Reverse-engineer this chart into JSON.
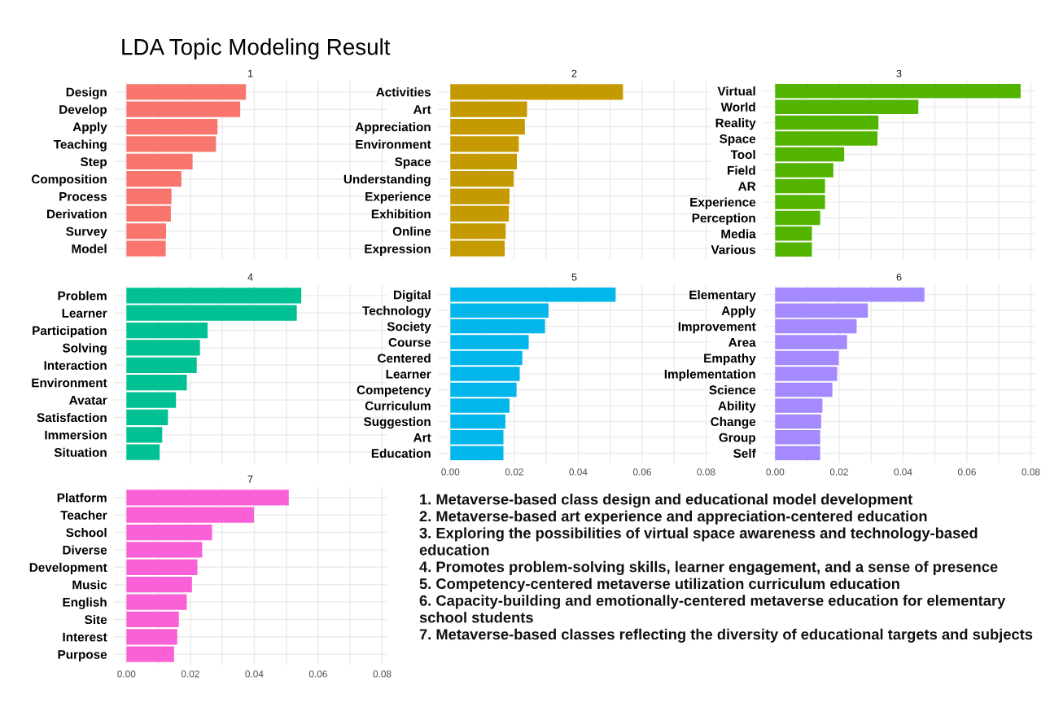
{
  "chart_data": [
    {
      "type": "other",
      "title": "LDA Topic Modeling Result",
      "annotations": [
        "1. Metaverse-based class design and educational model development",
        "2. Metaverse-based art experience and appreciation-centered education",
        "3. Exploring the possibilities of virtual space awareness and technology-based education",
        "4. Promotes problem-solving skills, learner engagement, and a sense of presence",
        "5. Competency-centered metaverse utilization curriculum education",
        "6. Capacity-building and emotionally-centered metaverse education for elementary school students",
        "7. Metaverse-based classes reflecting the diversity of educational targets and subjects"
      ]
    },
    {
      "type": "bar",
      "orientation": "horizontal",
      "title": "1",
      "color": "#f8766d",
      "grid": true,
      "tick_labels": "y",
      "xlim": [
        -0.0039,
        0.0814
      ],
      "xticks": [
        0,
        0.01,
        0.02,
        0.03,
        0.04,
        0.05,
        0.06,
        0.07,
        0.08
      ],
      "categories": [
        "Design",
        "Develop",
        "Apply",
        "Teaching",
        "Step",
        "Composition",
        "Process",
        "Derivation",
        "Survey",
        "Model"
      ],
      "values": [
        0.0374,
        0.0356,
        0.0285,
        0.028,
        0.0207,
        0.0172,
        0.0141,
        0.0139,
        0.0124,
        0.0123
      ]
    },
    {
      "type": "bar",
      "orientation": "horizontal",
      "title": "2",
      "color": "#c49a00",
      "grid": true,
      "tick_labels": "y",
      "xlim": [
        -0.0039,
        0.0814
      ],
      "xticks": [
        0,
        0.01,
        0.02,
        0.03,
        0.04,
        0.05,
        0.06,
        0.07,
        0.08
      ],
      "categories": [
        "Activities",
        "Art",
        "Appreciation",
        "Environment",
        "Space",
        "Understanding",
        "Experience",
        "Exhibition",
        "Online",
        "Expression"
      ],
      "values": [
        0.054,
        0.024,
        0.0233,
        0.0214,
        0.0208,
        0.0198,
        0.0185,
        0.0183,
        0.0173,
        0.017
      ]
    },
    {
      "type": "bar",
      "orientation": "horizontal",
      "title": "3",
      "color": "#53b400",
      "grid": true,
      "tick_labels": "y",
      "xlim": [
        -0.0039,
        0.0814
      ],
      "xticks": [
        0,
        0.01,
        0.02,
        0.03,
        0.04,
        0.05,
        0.06,
        0.07,
        0.08
      ],
      "categories": [
        "Virtual",
        "World",
        "Reality",
        "Space",
        "Tool",
        "Field",
        "AR",
        "Experience",
        "Perception",
        "Media",
        "Various"
      ],
      "values": [
        0.0768,
        0.0448,
        0.0323,
        0.032,
        0.0216,
        0.0182,
        0.0156,
        0.0156,
        0.0141,
        0.0115,
        0.0115
      ]
    },
    {
      "type": "bar",
      "orientation": "horizontal",
      "title": "4",
      "color": "#00c094",
      "grid": true,
      "tick_labels": "y",
      "xlim": [
        -0.0039,
        0.0814
      ],
      "xticks": [
        0,
        0.01,
        0.02,
        0.03,
        0.04,
        0.05,
        0.06,
        0.07,
        0.08
      ],
      "categories": [
        "Problem",
        "Learner",
        "Participation",
        "Solving",
        "Interaction",
        "Environment",
        "Avatar",
        "Satisfaction",
        "Immersion",
        "Situation"
      ],
      "values": [
        0.0547,
        0.0533,
        0.0254,
        0.023,
        0.022,
        0.0189,
        0.0155,
        0.013,
        0.0112,
        0.0104
      ]
    },
    {
      "type": "bar",
      "orientation": "horizontal",
      "title": "5",
      "color": "#00b6eb",
      "grid": true,
      "xlim": [
        -0.0039,
        0.0814
      ],
      "xticks": [
        {
          "value": 0,
          "label": "0.00"
        },
        {
          "value": 0.01,
          "label": null
        },
        {
          "value": 0.02,
          "label": "0.02"
        },
        {
          "value": 0.03,
          "label": null
        },
        {
          "value": 0.04,
          "label": "0.04"
        },
        {
          "value": 0.05,
          "label": null
        },
        {
          "value": 0.06,
          "label": "0.06"
        },
        {
          "value": 0.07,
          "label": null
        },
        {
          "value": 0.08,
          "label": "0.08"
        }
      ],
      "categories": [
        "Digital",
        "Technology",
        "Society",
        "Course",
        "Centered",
        "Learner",
        "Competency",
        "Curriculum",
        "Suggestion",
        "Art",
        "Education"
      ],
      "values": [
        0.0517,
        0.0307,
        0.0296,
        0.0245,
        0.0225,
        0.0217,
        0.0207,
        0.0185,
        0.0172,
        0.0166,
        0.0166
      ]
    },
    {
      "type": "bar",
      "orientation": "horizontal",
      "title": "6",
      "color": "#a58aff",
      "grid": true,
      "xlim": [
        -0.0039,
        0.0814
      ],
      "xticks": [
        {
          "value": 0,
          "label": "0.00"
        },
        {
          "value": 0.01,
          "label": null
        },
        {
          "value": 0.02,
          "label": "0.02"
        },
        {
          "value": 0.03,
          "label": null
        },
        {
          "value": 0.04,
          "label": "0.04"
        },
        {
          "value": 0.05,
          "label": null
        },
        {
          "value": 0.06,
          "label": "0.06"
        },
        {
          "value": 0.07,
          "label": null
        },
        {
          "value": 0.08,
          "label": "0.08"
        }
      ],
      "categories": [
        "Elementary",
        "Apply",
        "Improvement",
        "Area",
        "Empathy",
        "Implementation",
        "Science",
        "Ability",
        "Change",
        "Group",
        "Self"
      ],
      "values": [
        0.0467,
        0.029,
        0.0255,
        0.0225,
        0.0199,
        0.0194,
        0.0179,
        0.0148,
        0.0144,
        0.0141,
        0.0141
      ]
    },
    {
      "type": "bar",
      "orientation": "horizontal",
      "title": "7",
      "color": "#fb61d7",
      "grid": true,
      "xlim": [
        -0.0039,
        0.0814
      ],
      "xticks": [
        {
          "value": 0,
          "label": "0.00"
        },
        {
          "value": 0.01,
          "label": null
        },
        {
          "value": 0.02,
          "label": "0.02"
        },
        {
          "value": 0.03,
          "label": null
        },
        {
          "value": 0.04,
          "label": "0.04"
        },
        {
          "value": 0.05,
          "label": null
        },
        {
          "value": 0.06,
          "label": "0.06"
        },
        {
          "value": 0.07,
          "label": null
        },
        {
          "value": 0.08,
          "label": "0.08"
        }
      ],
      "categories": [
        "Platform",
        "Teacher",
        "School",
        "Diverse",
        "Development",
        "Music",
        "English",
        "Site",
        "Interest",
        "Purpose"
      ],
      "values": [
        0.0508,
        0.0399,
        0.0268,
        0.0237,
        0.0222,
        0.0205,
        0.0189,
        0.0164,
        0.0159,
        0.0149
      ]
    }
  ]
}
